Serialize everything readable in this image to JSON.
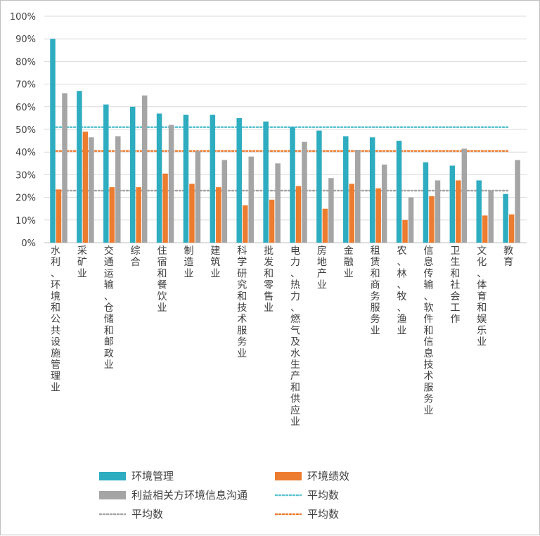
{
  "chart_data": {
    "type": "bar",
    "ylim": [
      0,
      100
    ],
    "yticks": [
      "0%",
      "10%",
      "20%",
      "30%",
      "40%",
      "50%",
      "60%",
      "70%",
      "80%",
      "90%",
      "100%"
    ],
    "grid": true,
    "legend_position": "bottom",
    "categories": [
      "水利、环境和公共设施管理业",
      "采矿业",
      "交通运输、仓储和邮政业",
      "综合",
      "住宿和餐饮业",
      "制造业",
      "建筑业",
      "科学研究和技术服务业",
      "批发和零售业",
      "电力、热力、燃气及水生产和供应业",
      "房地产业",
      "金融业",
      "租赁和商务服务业",
      "农、林、牧、渔业",
      "信息传输、软件和信息技术服务业",
      "卫生和社会工作",
      "文化、体育和娱乐业",
      "教育"
    ],
    "series": [
      {
        "name": "环境管理",
        "color": "#2eacc0",
        "values": [
          90,
          67,
          61,
          60,
          57,
          56.5,
          56.5,
          55,
          53.5,
          51,
          49.5,
          47,
          46.5,
          45,
          35.5,
          34,
          27.5,
          21.5
        ]
      },
      {
        "name": "环境绩效",
        "color": "#ec7c30",
        "values": [
          23.5,
          49,
          24.5,
          24.5,
          30.5,
          26,
          24.5,
          16.5,
          19,
          25,
          15,
          26,
          24,
          10,
          20.5,
          27.5,
          12,
          12.5
        ]
      },
      {
        "name": "利益相关方环境信息沟通",
        "color": "#a5a5a5",
        "values": [
          66,
          46.5,
          47,
          65,
          52,
          40.5,
          36.5,
          38,
          35,
          44.5,
          28.5,
          41,
          34.5,
          20,
          27.5,
          41.5,
          23,
          36.5
        ]
      }
    ],
    "averages": [
      {
        "name": "平均数",
        "value": 51,
        "color": "#5bc3cf"
      },
      {
        "name": "平均数",
        "value": 23,
        "color": "#a5a5a5"
      },
      {
        "name": "平均数",
        "value": 40.5,
        "color": "#ec7c30"
      }
    ]
  }
}
